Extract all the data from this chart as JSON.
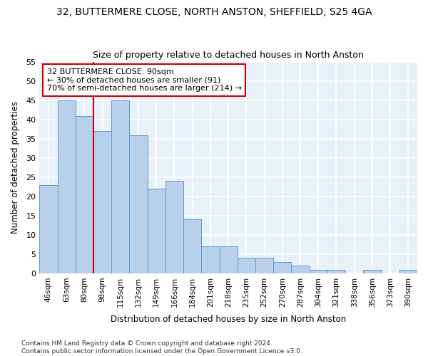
{
  "title": "32, BUTTERMERE CLOSE, NORTH ANSTON, SHEFFIELD, S25 4GA",
  "subtitle": "Size of property relative to detached houses in North Anston",
  "xlabel": "Distribution of detached houses by size in North Anston",
  "ylabel": "Number of detached properties",
  "categories": [
    "46sqm",
    "63sqm",
    "80sqm",
    "98sqm",
    "115sqm",
    "132sqm",
    "149sqm",
    "166sqm",
    "184sqm",
    "201sqm",
    "218sqm",
    "235sqm",
    "252sqm",
    "270sqm",
    "287sqm",
    "304sqm",
    "321sqm",
    "338sqm",
    "356sqm",
    "373sqm",
    "390sqm"
  ],
  "values": [
    23,
    45,
    41,
    37,
    45,
    36,
    22,
    24,
    14,
    7,
    7,
    4,
    4,
    3,
    2,
    1,
    1,
    0,
    1,
    0,
    1
  ],
  "bar_color": "#b8d0ea",
  "bar_edge_color": "#6699cc",
  "background_color": "#e8f0f8",
  "grid_color": "#ffffff",
  "property_line_x": 3.0,
  "property_line_color": "#cc0000",
  "annotation_line1": "32 BUTTERMERE CLOSE: 90sqm",
  "annotation_line2": "← 30% of detached houses are smaller (91)",
  "annotation_line3": "70% of semi-detached houses are larger (214) →",
  "annotation_box_color": "#ffffff",
  "annotation_box_edge": "#cc0000",
  "ylim": [
    0,
    55
  ],
  "yticks": [
    0,
    5,
    10,
    15,
    20,
    25,
    30,
    35,
    40,
    45,
    50,
    55
  ],
  "footnote": "Contains HM Land Registry data © Crown copyright and database right 2024.\nContains public sector information licensed under the Open Government Licence v3.0."
}
